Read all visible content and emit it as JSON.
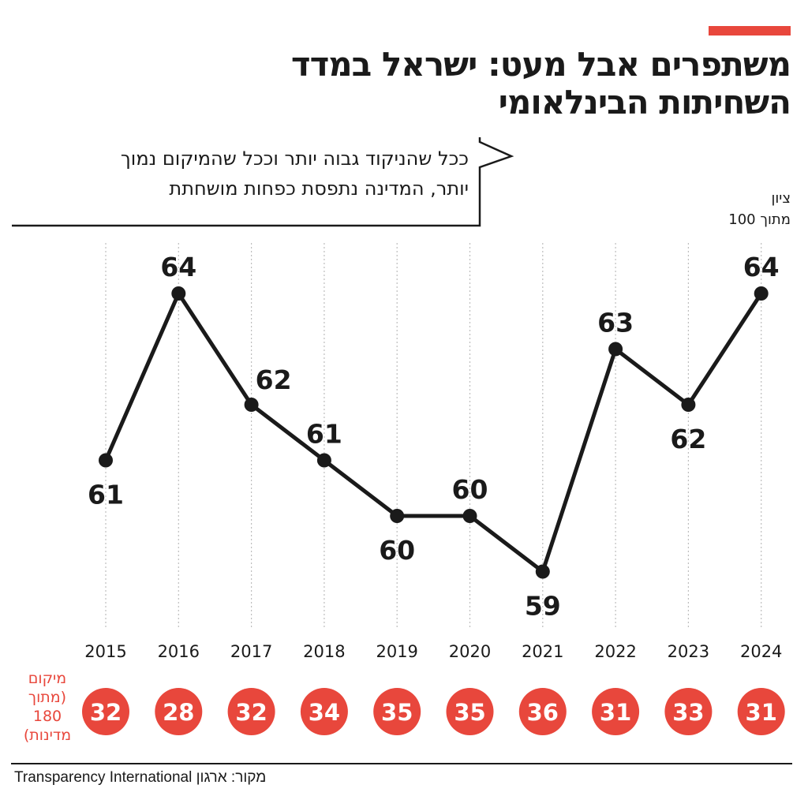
{
  "title_line1": "משתפרים אבל מעט: ישראל במדד",
  "title_line2": "השחיתות הבינלאומי",
  "subtitle_line1": "ככל שהניקוד גבוה יותר וככל שהמיקום נמוך",
  "subtitle_line2": "יותר, המדינה נתפסת כפחות מושחתת",
  "ylabel_line1": "ציון",
  "ylabel_line2": "מתוך 100",
  "rank_legend": {
    "line1": "מיקום",
    "line2": "(מתוך",
    "line3": "180",
    "line4": "מדינות)"
  },
  "source": "מקור: ארגון Transparency International",
  "colors": {
    "accent": "#e8473c",
    "line": "#1a1a1a",
    "grid": "#bdbdbd",
    "rank_text": "#ffffff"
  },
  "chart_data": {
    "type": "line",
    "x": [
      "2015",
      "2016",
      "2017",
      "2018",
      "2019",
      "2020",
      "2021",
      "2022",
      "2023",
      "2024"
    ],
    "series": [
      {
        "values": [
          61,
          64,
          62,
          61,
          60,
          60,
          59,
          63,
          62,
          64
        ]
      }
    ],
    "ranks": [
      32,
      28,
      32,
      34,
      35,
      35,
      36,
      31,
      33,
      31
    ],
    "label_positions": [
      "below",
      "above",
      "above-right",
      "above",
      "below",
      "above",
      "below",
      "above",
      "below",
      "above"
    ],
    "ylim": [
      58,
      65
    ],
    "grid": "vertical-dotted",
    "legend": "none"
  }
}
